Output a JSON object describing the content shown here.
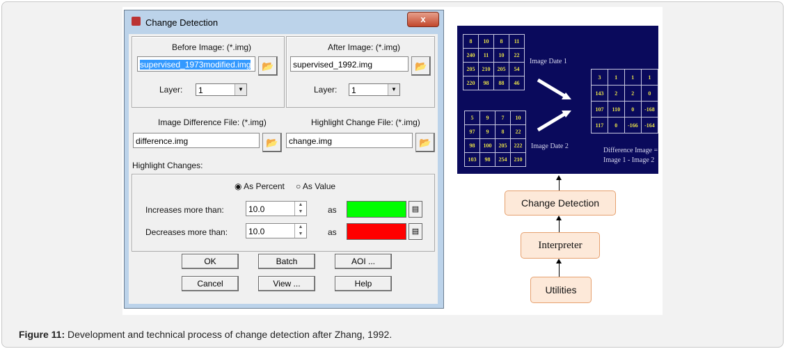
{
  "dialog": {
    "title": "Change Detection",
    "close": "x",
    "before_label": "Before Image: (*.img)",
    "before_value": "supervised_1973modified.img",
    "after_label": "After Image: (*.img)",
    "after_value": "supervised_1992.img",
    "layer_label": "Layer:",
    "before_layer": "1",
    "after_layer": "1",
    "diff_label": "Image Difference File: (*.img)",
    "diff_value": "difference.img",
    "highlight_label": "Highlight Change File: (*.img)",
    "highlight_value": "change.img",
    "highlight_changes": "Highlight Changes:",
    "as_percent": "As Percent",
    "as_value": "As Value",
    "mode_selected": "As Percent",
    "increases_label": "Increases more than:",
    "increases_value": "10.0",
    "decreases_label": "Decreases more than:",
    "decreases_value": "10.0",
    "as": "as",
    "increase_color": "#00ff00",
    "decrease_color": "#ff0000",
    "buttons": {
      "ok": "OK",
      "batch": "Batch",
      "aoi": "AOI ...",
      "cancel": "Cancel",
      "view": "View ...",
      "help": "Help"
    }
  },
  "diagram": {
    "date1_label": "Image Date 1",
    "date2_label": "Image Date 2",
    "diff_label_1": "Difference Image =",
    "diff_label_2": "Image 1 - Image 2",
    "matrix1": [
      [
        "8",
        "10",
        "8",
        "11"
      ],
      [
        "240",
        "11",
        "10",
        "22"
      ],
      [
        "205",
        "210",
        "205",
        "54"
      ],
      [
        "220",
        "98",
        "88",
        "46"
      ]
    ],
    "matrix2": [
      [
        "5",
        "9",
        "7",
        "10"
      ],
      [
        "97",
        "9",
        "8",
        "22"
      ],
      [
        "98",
        "100",
        "205",
        "222"
      ],
      [
        "103",
        "98",
        "254",
        "210"
      ]
    ],
    "matrix_diff": [
      [
        "3",
        "1",
        "1",
        "1"
      ],
      [
        "143",
        "2",
        "2",
        "0"
      ],
      [
        "107",
        "110",
        "0",
        "-168"
      ],
      [
        "117",
        "0",
        "-166",
        "-164"
      ]
    ]
  },
  "flow": [
    "Change Detection",
    "Interpreter",
    "Utilities"
  ],
  "caption": {
    "label": "Figure 11:",
    "text": " Development and technical process of change detection after Zhang, 1992."
  }
}
